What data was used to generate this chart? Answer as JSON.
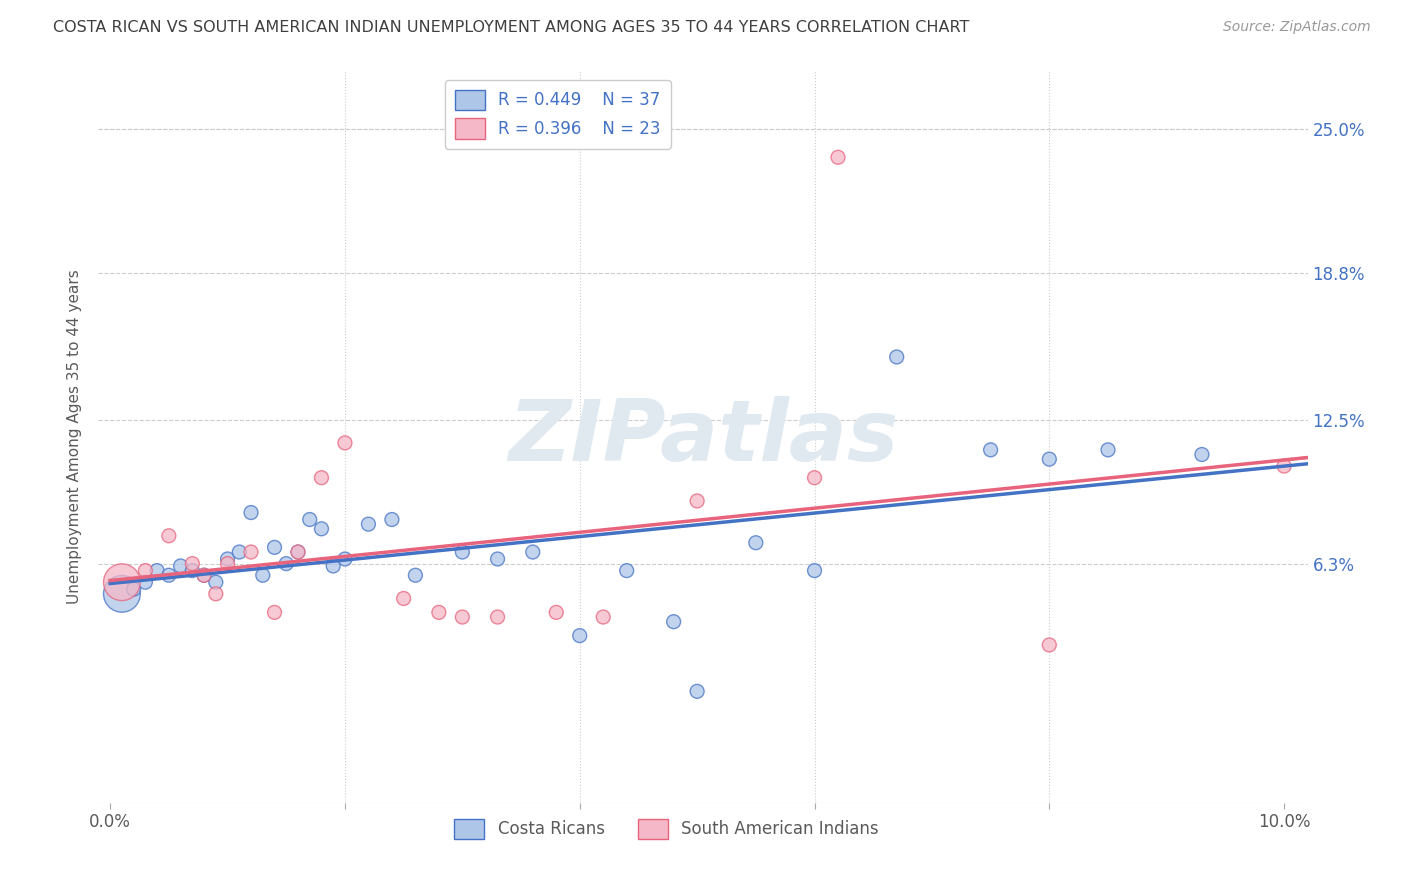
{
  "title": "COSTA RICAN VS SOUTH AMERICAN INDIAN UNEMPLOYMENT AMONG AGES 35 TO 44 YEARS CORRELATION CHART",
  "source": "Source: ZipAtlas.com",
  "ylabel": "Unemployment Among Ages 35 to 44 years",
  "xlim": [
    -0.001,
    0.102
  ],
  "ylim": [
    -0.04,
    0.275
  ],
  "xtick_positions": [
    0.0,
    0.02,
    0.04,
    0.06,
    0.08,
    0.1
  ],
  "xticklabels": [
    "0.0%",
    "",
    "",
    "",
    "",
    "10.0%"
  ],
  "ytick_positions": [
    0.063,
    0.125,
    0.188,
    0.25
  ],
  "ytick_labels": [
    "6.3%",
    "12.5%",
    "18.8%",
    "25.0%"
  ],
  "legend_R_blue": "0.449",
  "legend_N_blue": "37",
  "legend_R_pink": "0.396",
  "legend_N_pink": "23",
  "blue_color": "#aec6e8",
  "pink_color": "#f4b8c8",
  "blue_line_color": "#4472c4",
  "pink_line_color": "#e8637c",
  "title_color": "#404040",
  "axis_label_color": "#5a5a5a",
  "watermark_text": "ZIPatlas",
  "blue_scatter_x": [
    0.001,
    0.002,
    0.003,
    0.004,
    0.005,
    0.006,
    0.007,
    0.008,
    0.009,
    0.01,
    0.011,
    0.012,
    0.013,
    0.014,
    0.015,
    0.016,
    0.017,
    0.018,
    0.019,
    0.02,
    0.022,
    0.024,
    0.026,
    0.03,
    0.033,
    0.036,
    0.04,
    0.044,
    0.048,
    0.05,
    0.055,
    0.06,
    0.067,
    0.075,
    0.08,
    0.085,
    0.093
  ],
  "blue_scatter_y": [
    0.05,
    0.052,
    0.055,
    0.06,
    0.058,
    0.062,
    0.06,
    0.058,
    0.055,
    0.065,
    0.068,
    0.085,
    0.058,
    0.07,
    0.063,
    0.068,
    0.082,
    0.078,
    0.062,
    0.065,
    0.08,
    0.082,
    0.058,
    0.068,
    0.065,
    0.068,
    0.032,
    0.06,
    0.038,
    0.008,
    0.072,
    0.06,
    0.152,
    0.112,
    0.108,
    0.112,
    0.11
  ],
  "blue_large_idx": [
    0
  ],
  "pink_scatter_x": [
    0.001,
    0.003,
    0.005,
    0.007,
    0.008,
    0.009,
    0.01,
    0.012,
    0.014,
    0.016,
    0.018,
    0.02,
    0.025,
    0.028,
    0.03,
    0.033,
    0.038,
    0.042,
    0.05,
    0.06,
    0.062,
    0.08,
    0.1
  ],
  "pink_scatter_y": [
    0.055,
    0.06,
    0.075,
    0.063,
    0.058,
    0.05,
    0.063,
    0.068,
    0.042,
    0.068,
    0.1,
    0.115,
    0.048,
    0.042,
    0.04,
    0.04,
    0.042,
    0.04,
    0.09,
    0.1,
    0.238,
    0.028,
    0.105
  ],
  "pink_large_idx": [
    0
  ],
  "blue_marker_size": 100,
  "pink_marker_size": 100,
  "large_marker_size": 700,
  "grid_color": "#cccccc",
  "bg_color": "#ffffff",
  "bottom_legend_labels": [
    "Costa Ricans",
    "South American Indians"
  ]
}
